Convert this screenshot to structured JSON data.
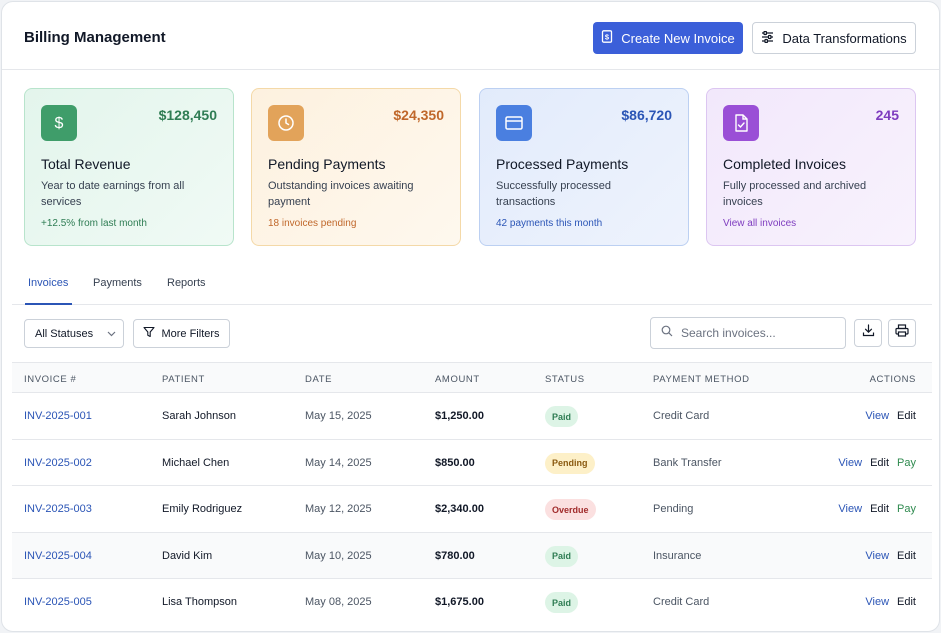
{
  "header": {
    "title": "Billing Management",
    "create_label": "Create New Invoice",
    "transform_label": "Data Transformations"
  },
  "cards": [
    {
      "value": "$128,450",
      "title": "Total Revenue",
      "desc": "Year to date earnings from all services",
      "note": "+12.5% from last month",
      "icon": "dollar-icon"
    },
    {
      "value": "$24,350",
      "title": "Pending Payments",
      "desc": "Outstanding invoices awaiting payment",
      "note": "18 invoices pending",
      "icon": "clock-icon"
    },
    {
      "value": "$86,720",
      "title": "Processed Payments",
      "desc": "Successfully processed transactions",
      "note": "42 payments this month",
      "icon": "credit-card-icon"
    },
    {
      "value": "245",
      "title": "Completed Invoices",
      "desc": "Fully processed and archived invoices",
      "note": "View all invoices",
      "icon": "document-check-icon"
    }
  ],
  "tabs": [
    "Invoices",
    "Payments",
    "Reports"
  ],
  "filters": {
    "status_selected": "All Statuses",
    "more_filters_label": "More Filters",
    "search_placeholder": "Search invoices..."
  },
  "table": {
    "headers": [
      "INVOICE #",
      "PATIENT",
      "DATE",
      "AMOUNT",
      "STATUS",
      "PAYMENT METHOD",
      "ACTIONS"
    ],
    "rows": [
      {
        "invoice": "INV-2025-001",
        "patient": "Sarah Johnson",
        "date": "May 15, 2025",
        "amount": "$1,250.00",
        "status": "Paid",
        "method": "Credit Card",
        "actions": [
          "View",
          "Edit"
        ]
      },
      {
        "invoice": "INV-2025-002",
        "patient": "Michael Chen",
        "date": "May 14, 2025",
        "amount": "$850.00",
        "status": "Pending",
        "method": "Bank Transfer",
        "actions": [
          "View",
          "Edit",
          "Pay"
        ]
      },
      {
        "invoice": "INV-2025-003",
        "patient": "Emily Rodriguez",
        "date": "May 12, 2025",
        "amount": "$2,340.00",
        "status": "Overdue",
        "method": "Pending",
        "actions": [
          "View",
          "Edit",
          "Pay"
        ]
      },
      {
        "invoice": "INV-2025-004",
        "patient": "David Kim",
        "date": "May 10, 2025",
        "amount": "$780.00",
        "status": "Paid",
        "method": "Insurance",
        "actions": [
          "View",
          "Edit"
        ]
      },
      {
        "invoice": "INV-2025-005",
        "patient": "Lisa Thompson",
        "date": "May 08, 2025",
        "amount": "$1,675.00",
        "status": "Paid",
        "method": "Credit Card",
        "actions": [
          "View",
          "Edit"
        ]
      }
    ]
  },
  "colors": {
    "primary": "#3b5fd9",
    "link": "#2b55b6",
    "paid": "#2f7d54",
    "pending": "#8a5a10",
    "overdue": "#a12b2b"
  }
}
